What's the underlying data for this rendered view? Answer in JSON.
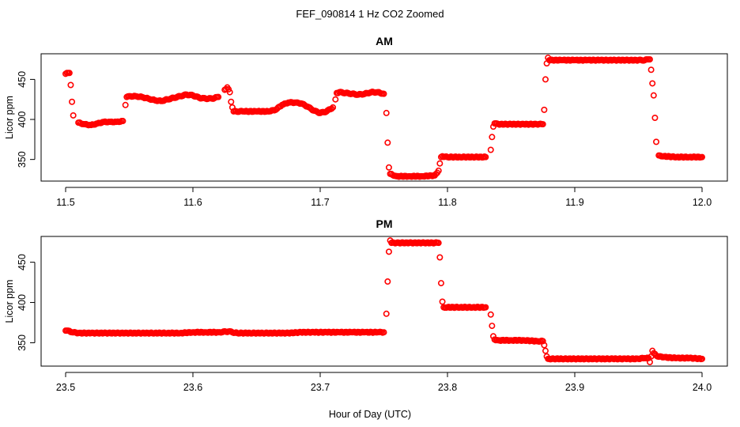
{
  "figure": {
    "title": "FEF_090814  1 Hz CO2 Zoomed",
    "xlabel": "Hour of Day (UTC)"
  },
  "chart_data": [
    {
      "type": "scatter",
      "title": "AM",
      "xlabel": "Hour of Day (UTC)",
      "ylabel": "Licor ppm",
      "xlim": [
        11.5,
        12.0
      ],
      "ylim": [
        323,
        482
      ],
      "xticks": [
        "11.5",
        "11.6",
        "11.7",
        "11.8",
        "11.9",
        "12.0"
      ],
      "yticks": [
        "350",
        "400",
        "450"
      ],
      "marker_color": "#ff0000",
      "grid": false,
      "series": [
        {
          "x": [
            11.5,
            11.502,
            11.503,
            11.504,
            11.505,
            11.506,
            11.51,
            11.515,
            11.52,
            11.525,
            11.53,
            11.535,
            11.54,
            11.545,
            11.547,
            11.548,
            11.55,
            11.555,
            11.56,
            11.565,
            11.57,
            11.575,
            11.58,
            11.585,
            11.59,
            11.595,
            11.6,
            11.605,
            11.61,
            11.615,
            11.62,
            11.625,
            11.627,
            11.629,
            11.63,
            11.631,
            11.632,
            11.64,
            11.65,
            11.66,
            11.665,
            11.67,
            11.675,
            11.68,
            11.685,
            11.69,
            11.695,
            11.7,
            11.705,
            11.71,
            11.712,
            11.713,
            11.715,
            11.72,
            11.725,
            11.73,
            11.735,
            11.74,
            11.745,
            11.75,
            11.752,
            11.753,
            11.754,
            11.755,
            11.76,
            11.77,
            11.78,
            11.79,
            11.793,
            11.794,
            11.795,
            11.796,
            11.8,
            11.81,
            11.82,
            11.83,
            11.834,
            11.835,
            11.836,
            11.837,
            11.84,
            11.85,
            11.86,
            11.87,
            11.875,
            11.876,
            11.877,
            11.878,
            11.879,
            11.88,
            11.89,
            11.9,
            11.91,
            11.92,
            11.93,
            11.94,
            11.95,
            11.955,
            11.958,
            11.959,
            11.96,
            11.961,
            11.962,
            11.963,
            11.964,
            11.966,
            11.97,
            11.98,
            11.99,
            12.0
          ],
          "y": [
            457,
            458,
            458,
            443,
            422,
            405,
            396,
            394,
            393,
            395,
            397,
            397,
            397,
            398,
            418,
            428,
            429,
            429,
            428,
            426,
            424,
            423,
            425,
            427,
            429,
            431,
            430,
            427,
            426,
            426,
            428,
            437,
            440,
            434,
            422,
            415,
            410,
            410,
            410,
            410,
            412,
            418,
            421,
            421,
            420,
            416,
            411,
            408,
            410,
            415,
            425,
            433,
            434,
            433,
            432,
            431,
            432,
            434,
            434,
            432,
            408,
            371,
            340,
            332,
            329,
            329,
            329,
            330,
            336,
            345,
            353,
            354,
            353,
            353,
            353,
            353,
            362,
            378,
            391,
            395,
            394,
            394,
            394,
            394,
            394,
            412,
            450,
            470,
            477,
            474,
            474,
            474,
            474,
            474,
            474,
            474,
            474,
            474,
            475,
            475,
            462,
            445,
            430,
            402,
            372,
            355,
            354,
            353,
            353,
            353
          ]
        }
      ]
    },
    {
      "type": "scatter",
      "title": "PM",
      "xlabel": "Hour of Day (UTC)",
      "ylabel": "Licor ppm",
      "xlim": [
        23.5,
        24.0
      ],
      "ylim": [
        321,
        482
      ],
      "xticks": [
        "23.5",
        "23.6",
        "23.7",
        "23.8",
        "23.9",
        "24.0"
      ],
      "yticks": [
        "350",
        "400",
        "450"
      ],
      "marker_color": "#ff0000",
      "grid": false,
      "series": [
        {
          "x": [
            23.5,
            23.502,
            23.505,
            23.51,
            23.52,
            23.53,
            23.54,
            23.55,
            23.56,
            23.57,
            23.58,
            23.59,
            23.6,
            23.61,
            23.62,
            23.628,
            23.635,
            23.645,
            23.655,
            23.665,
            23.675,
            23.685,
            23.695,
            23.705,
            23.715,
            23.725,
            23.735,
            23.745,
            23.75,
            23.752,
            23.753,
            23.754,
            23.755,
            23.756,
            23.76,
            23.77,
            23.78,
            23.79,
            23.793,
            23.794,
            23.795,
            23.796,
            23.797,
            23.8,
            23.81,
            23.82,
            23.83,
            23.834,
            23.835,
            23.836,
            23.837,
            23.84,
            23.85,
            23.86,
            23.87,
            23.875,
            23.876,
            23.877,
            23.878,
            23.879,
            23.88,
            23.89,
            23.9,
            23.91,
            23.92,
            23.93,
            23.94,
            23.95,
            23.955,
            23.958,
            23.959,
            23.96,
            23.961,
            23.962,
            23.965,
            23.97,
            23.98,
            23.99,
            24.0
          ],
          "y": [
            365,
            365,
            363,
            362,
            362,
            362,
            362,
            362,
            362,
            362,
            362,
            362,
            363,
            363,
            363,
            364,
            362,
            362,
            362,
            362,
            362,
            363,
            363,
            363,
            363,
            363,
            363,
            363,
            363,
            386,
            426,
            463,
            477,
            474,
            474,
            474,
            474,
            474,
            474,
            456,
            424,
            401,
            394,
            394,
            394,
            394,
            394,
            385,
            371,
            358,
            354,
            353,
            353,
            353,
            352,
            352,
            347,
            340,
            333,
            330,
            330,
            330,
            330,
            330,
            330,
            330,
            330,
            330,
            331,
            331,
            326,
            333,
            340,
            337,
            333,
            332,
            331,
            331,
            330
          ]
        }
      ]
    }
  ]
}
